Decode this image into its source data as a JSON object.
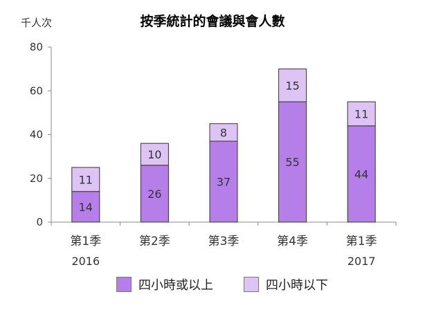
{
  "chart_data": {
    "type": "bar",
    "stacked": true,
    "title": "按季統計的會議與會人數",
    "ylabel": "千人次",
    "ylim": [
      0,
      80
    ],
    "yticks": [
      0,
      20,
      40,
      60,
      80
    ],
    "categories": [
      {
        "line1": "第1季",
        "line2": "2016"
      },
      {
        "line1": "第2季",
        "line2": ""
      },
      {
        "line1": "第3季",
        "line2": ""
      },
      {
        "line1": "第4季",
        "line2": ""
      },
      {
        "line1": "第1季",
        "line2": "2017"
      }
    ],
    "series": [
      {
        "name": "四小時或以上",
        "color": "#b57ee8",
        "values": [
          14,
          26,
          37,
          55,
          44
        ]
      },
      {
        "name": "四小時以下",
        "color": "#ddc4f5",
        "values": [
          11,
          10,
          8,
          15,
          11
        ]
      }
    ],
    "legend_position": "bottom",
    "grid": false
  }
}
